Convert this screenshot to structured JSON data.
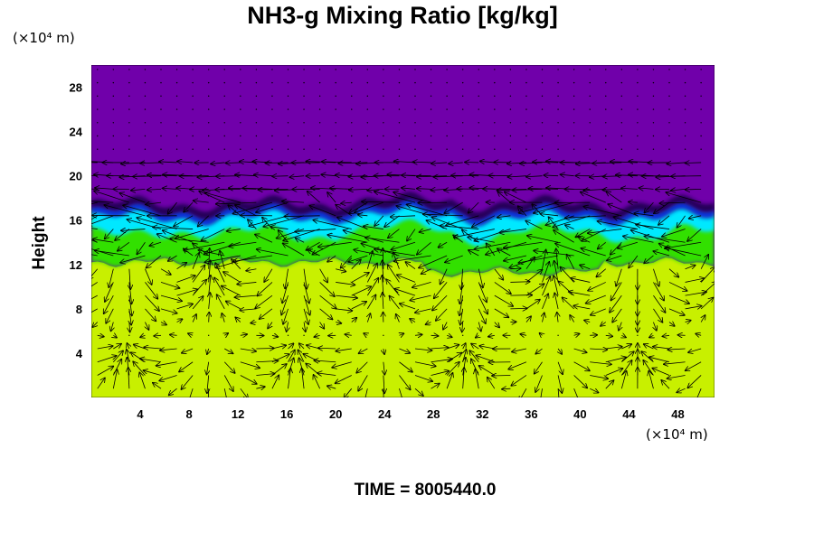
{
  "chart_data": {
    "type": "heatmap",
    "title": "NH3-g Mixing Ratio [kg/kg]",
    "ylabel": "Height",
    "xunit": "(×10⁴ m)",
    "yunit": "(×10⁴ m)",
    "x_ticks": [
      4,
      8,
      12,
      16,
      20,
      24,
      28,
      32,
      36,
      40,
      44,
      48
    ],
    "y_ticks": [
      4,
      8,
      12,
      16,
      20,
      24,
      28
    ],
    "xlim": [
      0,
      51
    ],
    "ylim": [
      0,
      30
    ],
    "overlay": "velocity vector field (arrows)",
    "regions": [
      {
        "name": "lower layer",
        "color": "#c8f000",
        "y_range": [
          0,
          12
        ]
      },
      {
        "name": "mixed layer",
        "color": "#33e000",
        "y_range": [
          12,
          16.5
        ]
      },
      {
        "name": "interface",
        "color": "#00e8ff",
        "y_range": [
          15,
          17
        ]
      },
      {
        "name": "upper layer",
        "color": "#7000aa",
        "y_range": [
          17,
          30
        ]
      }
    ],
    "time_label": "TIME = 8005440.0"
  },
  "colors": {
    "background": "#ffffff",
    "upper": "#7000aa",
    "lower": "#c8f000",
    "mid": "#33e000",
    "cyan": "#00e8ff",
    "blue": "#1030e0",
    "navy": "#1a0050"
  }
}
